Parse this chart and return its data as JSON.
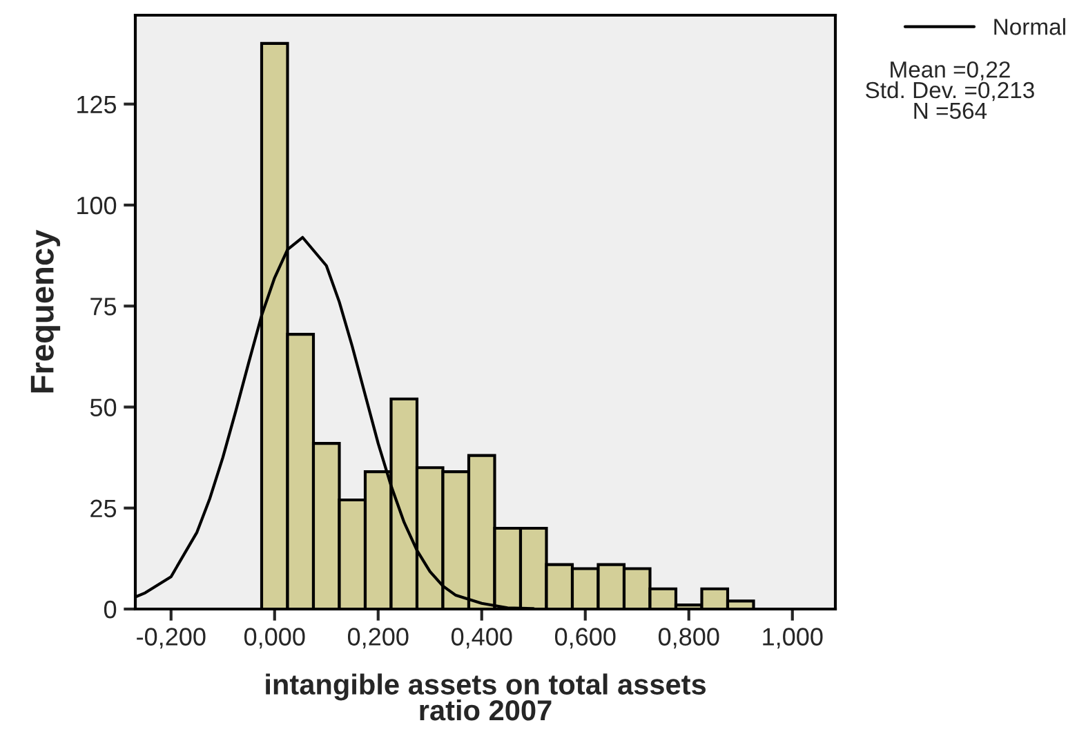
{
  "chart_data": {
    "type": "histogram",
    "xlabel": "intangible assets on total assets\nratio 2007",
    "ylabel": "Frequency",
    "bins": [
      -0.025,
      0.025,
      0.075,
      0.125,
      0.175,
      0.225,
      0.275,
      0.325,
      0.375,
      0.425,
      0.475,
      0.525,
      0.575,
      0.625,
      0.675,
      0.725,
      0.775,
      0.825,
      0.875,
      0.925
    ],
    "values": [
      140,
      68,
      41,
      27,
      34,
      52,
      35,
      34,
      38,
      20,
      20,
      11,
      10,
      11,
      10,
      5,
      1,
      5,
      2
    ],
    "color": "#d3cf98",
    "series": [
      {
        "type": "line",
        "name": "Normal",
        "color": "#000000",
        "x": [
          -0.269,
          -0.25,
          -0.2,
          -0.15,
          -0.125,
          -0.1,
          -0.075,
          -0.05,
          -0.025,
          0,
          0.025,
          0.054,
          0.1,
          0.125,
          0.15,
          0.175,
          0.2,
          0.225,
          0.25,
          0.275,
          0.3,
          0.325,
          0.35,
          0.4,
          0.45,
          0.5
        ],
        "values": [
          3,
          4,
          8,
          19,
          27.4,
          37.5,
          49,
          61,
          72.7,
          82,
          89,
          92,
          85,
          76,
          65,
          53,
          41,
          30.5,
          21.5,
          14.5,
          9.3,
          5.7,
          3.4,
          1.4,
          0.3,
          0.1
        ]
      }
    ],
    "xlim": [
      -0.269,
      1.083
    ],
    "ylim": [
      0,
      147
    ],
    "xticks": [
      {
        "value": -0.2,
        "label": "-0,200"
      },
      {
        "value": 0,
        "label": "0,000"
      },
      {
        "value": 0.2,
        "label": "0,200"
      },
      {
        "value": 0.4,
        "label": "0,400"
      },
      {
        "value": 0.6,
        "label": "0,600"
      },
      {
        "value": 0.8,
        "label": "0,800"
      },
      {
        "value": 1.0,
        "label": "1,000"
      }
    ],
    "yticks": [
      0,
      25,
      50,
      75,
      100,
      125
    ],
    "legend": "top right",
    "grid": false,
    "annotations": [
      "Mean =0,22\nStd. Dev. =0,213\nN =564"
    ]
  }
}
